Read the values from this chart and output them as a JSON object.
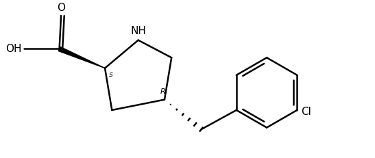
{
  "background_color": "#ffffff",
  "line_color": "#000000",
  "line_width": 1.8,
  "font_size_labels": 11,
  "font_size_stereo": 9,
  "figsize": [
    5.47,
    2.31
  ],
  "dpi": 100,
  "xlim": [
    0.0,
    10.5
  ],
  "ylim": [
    0.3,
    4.5
  ]
}
